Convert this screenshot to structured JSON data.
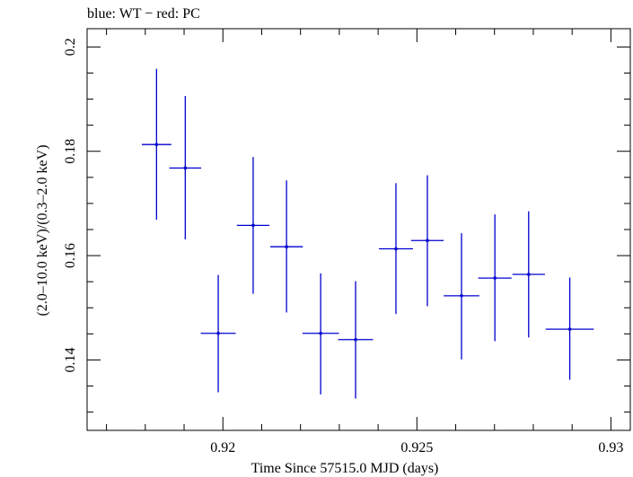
{
  "chart_data": {
    "type": "scatter",
    "title": "blue: WT − red: PC",
    "xlabel": "Time Since 57515.0 MJD (days)",
    "ylabel": "(2.0–10.0 keV)/(0.3–2.0 keV)",
    "xlim": [
      0.9165,
      0.9305
    ],
    "ylim": [
      0.1265,
      0.2035
    ],
    "xticks": [
      0.92,
      0.925,
      0.93
    ],
    "xtick_labels": [
      "0.92",
      "0.925",
      "0.93"
    ],
    "yticks": [
      0.14,
      0.16,
      0.18,
      0.2
    ],
    "ytick_labels": [
      "0.14",
      "0.16",
      "0.18",
      "0.2"
    ],
    "grid": false,
    "series": [
      {
        "color": "#0000d0",
        "points": [
          {
            "x": 0.91829,
            "xerr": 0.00038,
            "y": 0.1813,
            "ylo": 0.1669,
            "yhi": 0.1958
          },
          {
            "x": 0.91903,
            "xerr": 0.00041,
            "y": 0.1768,
            "ylo": 0.1631,
            "yhi": 0.1906
          },
          {
            "x": 0.91988,
            "xerr": 0.00045,
            "y": 0.1451,
            "ylo": 0.1338,
            "yhi": 0.1563
          },
          {
            "x": 0.92078,
            "xerr": 0.00042,
            "y": 0.1658,
            "ylo": 0.1527,
            "yhi": 0.1789
          },
          {
            "x": 0.92164,
            "xerr": 0.00042,
            "y": 0.1617,
            "ylo": 0.1491,
            "yhi": 0.1744
          },
          {
            "x": 0.92252,
            "xerr": 0.00047,
            "y": 0.1451,
            "ylo": 0.1334,
            "yhi": 0.1566
          },
          {
            "x": 0.92342,
            "xerr": 0.00045,
            "y": 0.1439,
            "ylo": 0.1326,
            "yhi": 0.1551
          },
          {
            "x": 0.92446,
            "xerr": 0.00044,
            "y": 0.1613,
            "ylo": 0.1488,
            "yhi": 0.1739
          },
          {
            "x": 0.92527,
            "xerr": 0.00042,
            "y": 0.1629,
            "ylo": 0.1503,
            "yhi": 0.1754
          },
          {
            "x": 0.92615,
            "xerr": 0.00046,
            "y": 0.1523,
            "ylo": 0.1401,
            "yhi": 0.1643
          },
          {
            "x": 0.92701,
            "xerr": 0.00043,
            "y": 0.1557,
            "ylo": 0.1436,
            "yhi": 0.1679
          },
          {
            "x": 0.92788,
            "xerr": 0.00042,
            "y": 0.1564,
            "ylo": 0.1443,
            "yhi": 0.1685
          },
          {
            "x": 0.92894,
            "xerr": 0.00062,
            "y": 0.1459,
            "ylo": 0.1362,
            "yhi": 0.1558
          }
        ]
      }
    ]
  }
}
